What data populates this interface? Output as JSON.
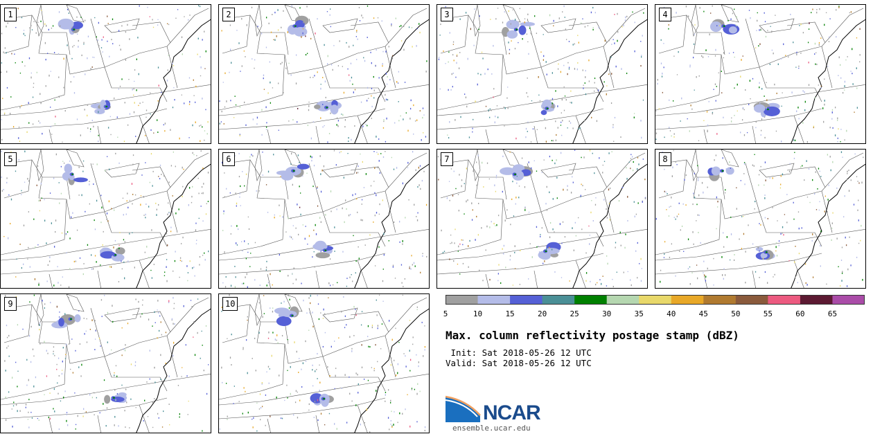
{
  "title": "Max. column reflectivity postage stamp (dBZ)",
  "init_line": " Init: Sat 2018-05-26 12 UTC",
  "valid_line": "Valid: Sat 2018-05-26 12 UTC",
  "logo_text": "NCAR",
  "site": "ensemble.ucar.edu",
  "members": [
    "1",
    "2",
    "3",
    "4",
    "5",
    "6",
    "7",
    "8",
    "9",
    "10"
  ],
  "colorbar": {
    "ticks": [
      "5",
      "10",
      "15",
      "20",
      "25",
      "30",
      "35",
      "40",
      "45",
      "50",
      "55",
      "60",
      "65"
    ],
    "bins": [
      {
        "from": 5,
        "to": 10,
        "color": "#a0a0a0"
      },
      {
        "from": 10,
        "to": 15,
        "color": "#b4bce8"
      },
      {
        "from": 15,
        "to": 20,
        "color": "#5560d6"
      },
      {
        "from": 20,
        "to": 25,
        "color": "#4a8f96"
      },
      {
        "from": 25,
        "to": 30,
        "color": "#008000"
      },
      {
        "from": 30,
        "to": 35,
        "color": "#b5d7b0"
      },
      {
        "from": 35,
        "to": 40,
        "color": "#e8d86a"
      },
      {
        "from": 40,
        "to": 45,
        "color": "#e8a828"
      },
      {
        "from": 45,
        "to": 50,
        "color": "#b07a30"
      },
      {
        "from": 50,
        "to": 55,
        "color": "#8a5a3c"
      },
      {
        "from": 55,
        "to": 60,
        "color": "#ec5a80"
      },
      {
        "from": 60,
        "to": 65,
        "color": "#5c1a32"
      },
      {
        "from": 65,
        "to": 70,
        "color": "#aa4ca8"
      }
    ]
  }
}
